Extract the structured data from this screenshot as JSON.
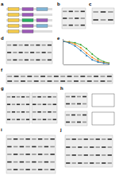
{
  "panels": [
    "a",
    "b",
    "c",
    "d",
    "e",
    "f",
    "g",
    "h",
    "i",
    "j"
  ],
  "chart_data": {
    "type": "line",
    "x": [
      0,
      1,
      2,
      3,
      4,
      5,
      6,
      7,
      8
    ],
    "series": [
      {
        "color": "#2ca02c",
        "values": [
          1.0,
          0.98,
          0.94,
          0.85,
          0.68,
          0.45,
          0.25,
          0.12,
          0.06
        ]
      },
      {
        "color": "#ff7f0e",
        "values": [
          1.0,
          0.96,
          0.88,
          0.72,
          0.5,
          0.3,
          0.16,
          0.08,
          0.04
        ]
      },
      {
        "color": "#1f77b4",
        "values": [
          1.0,
          0.93,
          0.8,
          0.6,
          0.38,
          0.2,
          0.1,
          0.05,
          0.02
        ]
      }
    ],
    "xlim": [
      0,
      8
    ],
    "ylim": [
      0,
      1.1
    ],
    "tick_labels": false,
    "grid": false
  }
}
